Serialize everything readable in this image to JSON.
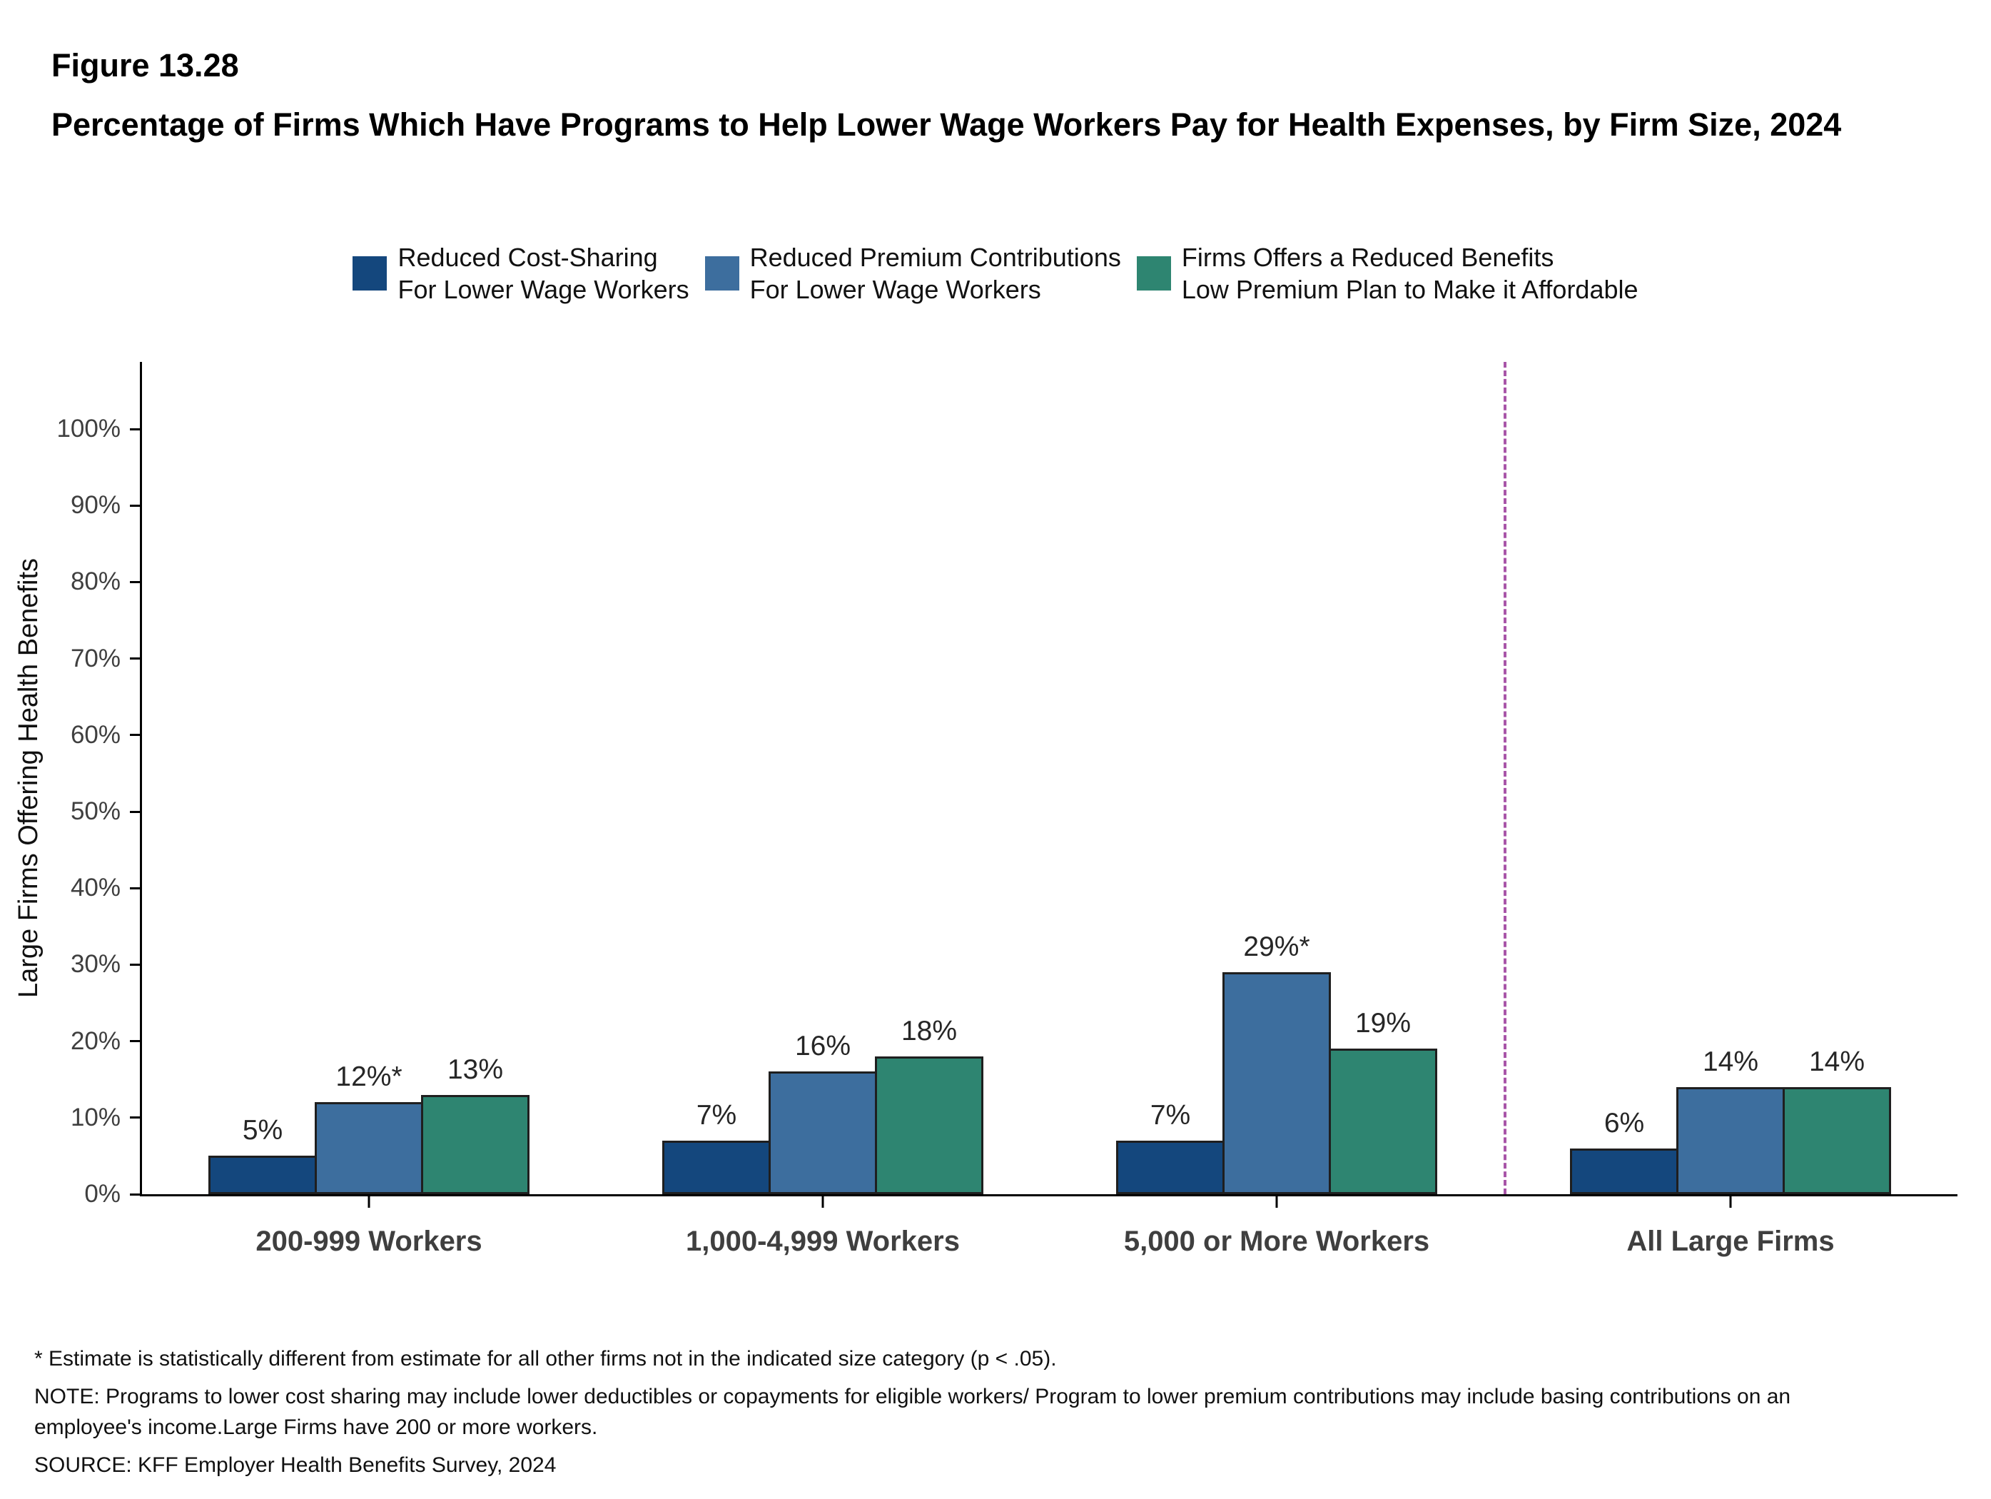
{
  "header": {
    "figure_label": "Figure 13.28",
    "title": "Percentage of Firms Which Have Programs to Help Lower Wage Workers Pay for Health Expenses, by Firm Size, 2024"
  },
  "chart_data": {
    "type": "bar",
    "title": "Percentage of Firms Which Have Programs to Help Lower Wage Workers Pay for Health Expenses, by Firm Size, 2024",
    "ylabel": "Large Firms Offering Health Benefits",
    "ylim": [
      0,
      100
    ],
    "yticks": [
      "0%",
      "10%",
      "20%",
      "30%",
      "40%",
      "50%",
      "60%",
      "70%",
      "80%",
      "90%",
      "100%"
    ],
    "grid": false,
    "legend_position": "top",
    "categories": [
      "200-999 Workers",
      "1,000-4,999 Workers",
      "5,000 or More Workers",
      "All Large Firms"
    ],
    "bar_border_color": "#1f1f1f",
    "separator": {
      "after_category_index": 2,
      "style": "dashed",
      "color": "#a855a8"
    },
    "series": [
      {
        "name": "Reduced Cost-Sharing For Lower Wage Workers",
        "legend_lines": [
          "Reduced Cost-Sharing",
          "For Lower Wage Workers"
        ],
        "color": "#14477d",
        "values": [
          5,
          7,
          7,
          6
        ],
        "labels": [
          "5%",
          "7%",
          "7%",
          "6%"
        ]
      },
      {
        "name": "Reduced Premium Contributions For Lower Wage Workers",
        "legend_lines": [
          "Reduced Premium Contributions",
          "For Lower Wage Workers"
        ],
        "color": "#3d6e9e",
        "values": [
          12,
          16,
          29,
          14
        ],
        "labels": [
          "12%*",
          "16%",
          "29%*",
          "14%"
        ]
      },
      {
        "name": "Firms Offers a Reduced Benefits Low Premium Plan to Make it Affordable",
        "legend_lines": [
          "Firms Offers a Reduced Benefits",
          "Low Premium Plan to Make it Affordable"
        ],
        "color": "#2e8571",
        "values": [
          13,
          18,
          19,
          14
        ],
        "labels": [
          "13%",
          "18%",
          "19%",
          "14%"
        ]
      }
    ]
  },
  "footnotes": {
    "asterisk": "* Estimate is statistically different from estimate for all other firms not in the indicated size category (p < .05).",
    "note": "NOTE: Programs to lower cost sharing may include lower deductibles or copayments for eligible workers/ Program to lower premium contributions may include basing contributions on an employee's income.Large Firms have 200 or more workers.",
    "source": "SOURCE: KFF Employer Health Benefits Survey, 2024"
  }
}
